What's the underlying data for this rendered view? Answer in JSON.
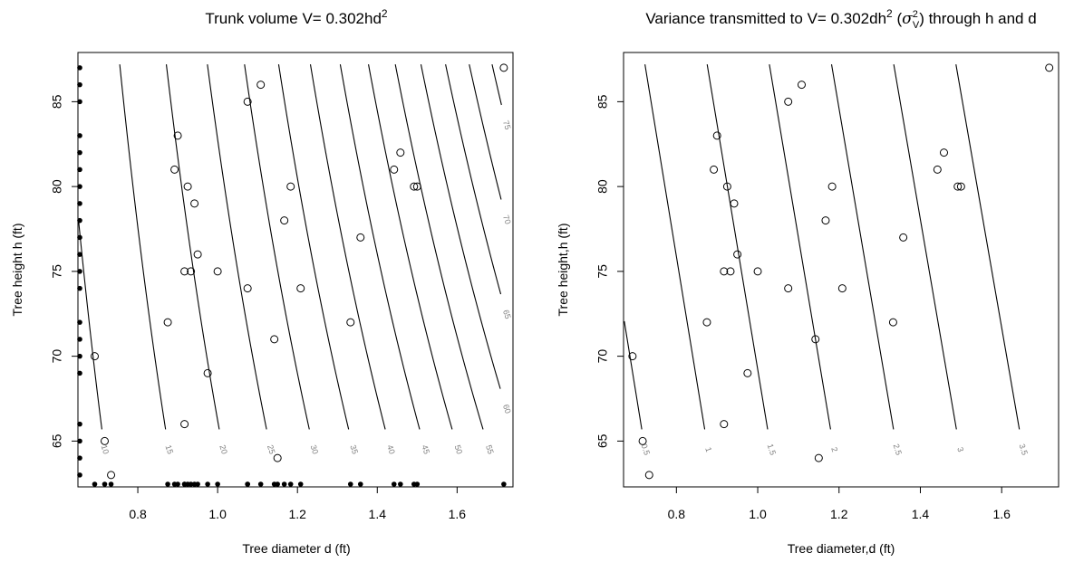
{
  "chart_data": [
    {
      "type": "scatter",
      "title": "Trunk volume V= 0.302hd",
      "title_sup": "2",
      "xlabel": "Tree diameter d (ft)",
      "ylabel": "Tree height h (ft)",
      "xlim": [
        0.65,
        1.74
      ],
      "ylim": [
        62.3,
        87.9
      ],
      "xticks": [
        "0.8",
        "1.0",
        "1.2",
        "1.4",
        "1.6"
      ],
      "yticks": [
        "65",
        "70",
        "75",
        "80",
        "85"
      ],
      "contour_function": "V = 0.302 h d^2",
      "contour_levels": [
        10,
        15,
        20,
        25,
        30,
        35,
        40,
        45,
        50,
        55,
        60,
        65,
        70,
        75
      ],
      "rug_marks": true,
      "points": [
        {
          "d": 0.692,
          "h": 70
        },
        {
          "d": 0.717,
          "h": 65
        },
        {
          "d": 0.733,
          "h": 63
        },
        {
          "d": 0.875,
          "h": 72
        },
        {
          "d": 0.892,
          "h": 81
        },
        {
          "d": 0.9,
          "h": 83
        },
        {
          "d": 0.917,
          "h": 66
        },
        {
          "d": 0.917,
          "h": 75
        },
        {
          "d": 0.925,
          "h": 80
        },
        {
          "d": 0.933,
          "h": 75
        },
        {
          "d": 0.942,
          "h": 79
        },
        {
          "d": 0.95,
          "h": 76
        },
        {
          "d": 0.975,
          "h": 69
        },
        {
          "d": 1.0,
          "h": 75
        },
        {
          "d": 1.075,
          "h": 74
        },
        {
          "d": 1.075,
          "h": 85
        },
        {
          "d": 1.108,
          "h": 86
        },
        {
          "d": 1.142,
          "h": 71
        },
        {
          "d": 1.15,
          "h": 64
        },
        {
          "d": 1.167,
          "h": 78
        },
        {
          "d": 1.183,
          "h": 80
        },
        {
          "d": 1.208,
          "h": 74
        },
        {
          "d": 1.333,
          "h": 72
        },
        {
          "d": 1.358,
          "h": 77
        },
        {
          "d": 1.442,
          "h": 81
        },
        {
          "d": 1.458,
          "h": 82
        },
        {
          "d": 1.492,
          "h": 80
        },
        {
          "d": 1.5,
          "h": 80
        },
        {
          "d": 1.717,
          "h": 87
        }
      ]
    },
    {
      "type": "scatter",
      "title_pre": "Variance transmitted to V= 0.302dh",
      "title_sup": "2",
      "title_sigma": "σ",
      "title_sigma_sup": "2",
      "title_sigma_sub": "V",
      "title_post": " through h and d",
      "xlabel": "Tree diameter,d (ft)",
      "ylabel": "Tree height,h (ft)",
      "xlim": [
        0.67,
        1.74
      ],
      "ylim": [
        62.3,
        87.9
      ],
      "xticks": [
        "0.8",
        "1.0",
        "1.2",
        "1.4",
        "1.6"
      ],
      "yticks": [
        "65",
        "70",
        "75",
        "80",
        "85"
      ],
      "contour_levels": [
        0.5,
        1,
        1.5,
        2,
        2.5,
        3,
        3.5
      ],
      "points": [
        {
          "d": 0.692,
          "h": 70
        },
        {
          "d": 0.717,
          "h": 65
        },
        {
          "d": 0.733,
          "h": 63
        },
        {
          "d": 0.875,
          "h": 72
        },
        {
          "d": 0.892,
          "h": 81
        },
        {
          "d": 0.9,
          "h": 83
        },
        {
          "d": 0.917,
          "h": 66
        },
        {
          "d": 0.917,
          "h": 75
        },
        {
          "d": 0.925,
          "h": 80
        },
        {
          "d": 0.933,
          "h": 75
        },
        {
          "d": 0.942,
          "h": 79
        },
        {
          "d": 0.95,
          "h": 76
        },
        {
          "d": 0.975,
          "h": 69
        },
        {
          "d": 1.0,
          "h": 75
        },
        {
          "d": 1.075,
          "h": 74
        },
        {
          "d": 1.075,
          "h": 85
        },
        {
          "d": 1.108,
          "h": 86
        },
        {
          "d": 1.142,
          "h": 71
        },
        {
          "d": 1.15,
          "h": 64
        },
        {
          "d": 1.167,
          "h": 78
        },
        {
          "d": 1.183,
          "h": 80
        },
        {
          "d": 1.208,
          "h": 74
        },
        {
          "d": 1.333,
          "h": 72
        },
        {
          "d": 1.358,
          "h": 77
        },
        {
          "d": 1.442,
          "h": 81
        },
        {
          "d": 1.458,
          "h": 82
        },
        {
          "d": 1.492,
          "h": 80
        },
        {
          "d": 1.5,
          "h": 80
        },
        {
          "d": 1.717,
          "h": 87
        }
      ]
    }
  ]
}
